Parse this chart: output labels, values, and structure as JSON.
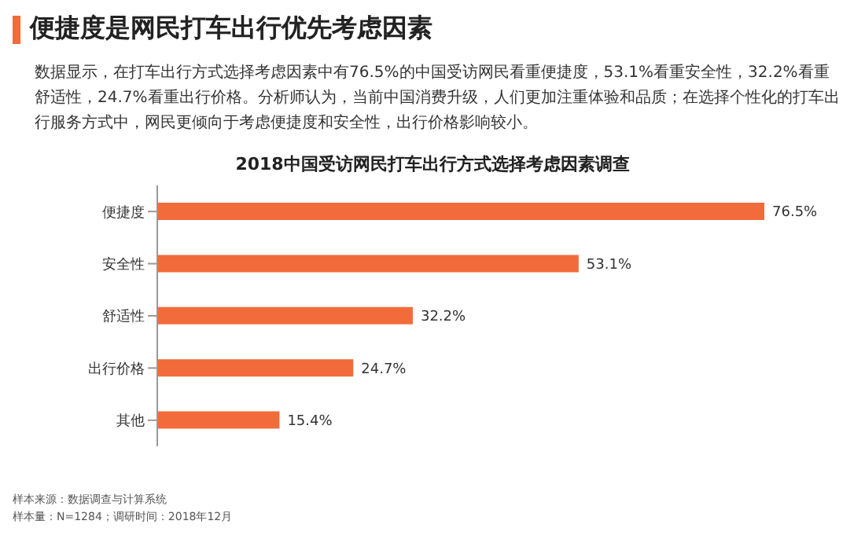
{
  "chart_data": {
    "type": "bar",
    "orientation": "horizontal",
    "title": "便捷度是网民打车出行优先考虑因素",
    "subtitle": "数据显示，在打车出行方式选择考虑因素中有76.5%的中国受访网民看重便捷度，53.1%看重安全性，32.2%看重舒适性，24.7%看重出行价格。分析师认为，当前中国消费升级，人们更加注重体验和品质；在选择个性化的打车出行服务方式中，网民更倾向于考虑便捷度和安全性，出行价格影响较小。",
    "xlabel": "2018中国受访网民打车出行方式选择考虑因素调查",
    "categories": [
      "便捷度",
      "安全性",
      "舒适性",
      "出行价格",
      "其他"
    ],
    "values": [
      76.5,
      53.1,
      32.2,
      24.7,
      15.4
    ],
    "value_labels": [
      "76.5%",
      "53.1%",
      "32.2%",
      "24.7%",
      "15.4%"
    ],
    "color": "#f26b3a",
    "grid": false,
    "legend": false,
    "annotations": [
      "样本来源：数据调查与计算系统",
      "样本量：N=1284；调研时间：2018年12月"
    ]
  }
}
